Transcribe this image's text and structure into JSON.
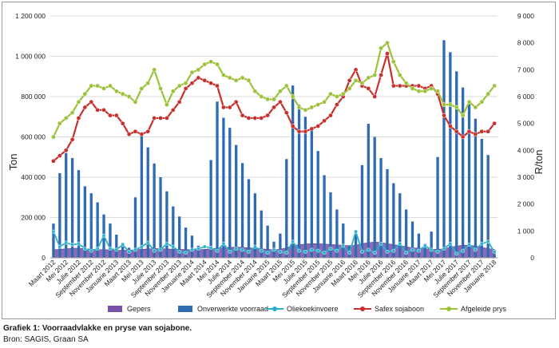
{
  "figure": {
    "caption": "Grafiek 1: Voorraadvlakke en pryse van sojabone.",
    "source": "Bron: SAGIS, Graan SA"
  },
  "chart_data": {
    "type": "bar",
    "title": "",
    "ylabel": "Ton",
    "y2label": "R/ton",
    "ylim": [
      0,
      1200000
    ],
    "y2lim": [
      0,
      9000
    ],
    "yticks": [
      "0",
      "200 000",
      "400 000",
      "600 000",
      "800 000",
      "1 000 000",
      "1 200 000"
    ],
    "y2ticks": [
      "0",
      "1 000",
      "2 000",
      "3 000",
      "4 000",
      "5 000",
      "6 000",
      "7 000",
      "8 000",
      "9 000"
    ],
    "grid": true,
    "legend_position": "bottom",
    "categories": [
      "Mrt 2012",
      "Apr 2012",
      "Mei 2012",
      "Jun 2012",
      "Jul 2012",
      "Aug 2012",
      "Sep 2012",
      "Okt 2012",
      "Nov 2012",
      "Des 2012",
      "Jan 2013",
      "Feb 2013",
      "Mrt 2013",
      "Apr 2013",
      "Mei 2013",
      "Jun 2013",
      "Jul 2013",
      "Aug 2013",
      "Sep 2013",
      "Okt 2013",
      "Nov 2013",
      "Des 2013",
      "Jan 2014",
      "Feb 2014",
      "Mrt 2014",
      "Apr 2014",
      "Mei 2014",
      "Jun 2014",
      "Jul 2014",
      "Aug 2014",
      "Sep 2014",
      "Okt 2014",
      "Nov 2014",
      "Des 2014",
      "Jan 2015",
      "Feb 2015",
      "Mrt 2015",
      "Apr 2015",
      "Mei 2015",
      "Jun 2015",
      "Jul 2015",
      "Aug 2015",
      "Sep 2015",
      "Okt 2015",
      "Nov 2015",
      "Des 2015",
      "Jan 2016",
      "Feb 2016",
      "Mrt 2016",
      "Apr 2016",
      "Mei 2016",
      "Jun 2016",
      "Jul 2016",
      "Aug 2016",
      "Sep 2016",
      "Okt 2016",
      "Nov 2016",
      "Des 2016",
      "Jan 2017",
      "Feb 2017",
      "Mrt 2017",
      "Apr 2017",
      "Mei 2017",
      "Jun 2017",
      "Jul 2017",
      "Aug 2017",
      "Sep 2017",
      "Okt 2017",
      "Nov 2017",
      "Des 2017",
      "Jan 2018"
    ],
    "xtick_labels": [
      "Maart 2012",
      "Mei 2012",
      "Julie 2012",
      "September 2012",
      "November 2012",
      "Januarie 2013",
      "Maart 2013",
      "Mei 2013",
      "Julie 2013",
      "September 2013",
      "November 2013",
      "Januarie 2014",
      "Maart 2014",
      "Mei 2014",
      "Julie 2014",
      "September 2014",
      "November 2014",
      "Januarie 2015",
      "Maart 2015",
      "Mei 2015",
      "Julie 2015",
      "September 2015",
      "November 2015",
      "Januarie 2016",
      "Maart 2016",
      "Mei 2016",
      "Julie 2016",
      "September 2016",
      "November 2016",
      "Januarie 2017",
      "Maart 2017",
      "Mei 2017",
      "Julie 2017",
      "September 2017",
      "November 2017",
      "Januarie 2018"
    ],
    "series": [
      {
        "name": "Gepers",
        "kind": "area",
        "axis": "left",
        "color": "#7a4fa8",
        "values": [
          40000,
          42000,
          45000,
          47000,
          48000,
          45000,
          43000,
          41000,
          40000,
          40000,
          38000,
          37000,
          38000,
          40000,
          42000,
          44000,
          46000,
          45000,
          44000,
          43000,
          42000,
          41000,
          40000,
          40000,
          42000,
          45000,
          48000,
          50000,
          52000,
          53000,
          52000,
          50000,
          48000,
          45000,
          42000,
          40000,
          42000,
          50000,
          60000,
          65000,
          68000,
          70000,
          70000,
          68000,
          66000,
          64000,
          62000,
          60000,
          62000,
          70000,
          75000,
          78000,
          76000,
          70000,
          65000,
          60000,
          55000,
          50000,
          48000,
          45000,
          42000,
          42000,
          45000,
          52000,
          58000,
          62000,
          62000,
          58000,
          52000,
          46000,
          42000
        ]
      },
      {
        "name": "Onverwerkte voorraad",
        "kind": "bar",
        "axis": "left",
        "color": "#2f6bb3",
        "values": [
          170000,
          420000,
          520000,
          495000,
          435000,
          355000,
          320000,
          275000,
          215000,
          170000,
          115000,
          75000,
          50000,
          300000,
          615000,
          548000,
          468000,
          400000,
          330000,
          255000,
          205000,
          150000,
          110000,
          60000,
          40000,
          485000,
          775000,
          695000,
          645000,
          560000,
          470000,
          390000,
          320000,
          235000,
          160000,
          80000,
          120000,
          490000,
          855000,
          760000,
          700000,
          640000,
          530000,
          410000,
          325000,
          240000,
          170000,
          60000,
          115000,
          460000,
          665000,
          600000,
          495000,
          440000,
          370000,
          320000,
          240000,
          180000,
          120000,
          70000,
          130000,
          500000,
          1080000,
          1020000,
          925000,
          845000,
          765000,
          690000,
          590000,
          510000,
          40000
        ]
      },
      {
        "name": "Oliekoekinvoere",
        "kind": "line",
        "axis": "left",
        "color": "#2bb0c9",
        "values": [
          130000,
          55000,
          75000,
          65000,
          70000,
          45000,
          35000,
          45000,
          110000,
          45000,
          40000,
          65000,
          30000,
          40000,
          55000,
          75000,
          35000,
          40000,
          70000,
          55000,
          30000,
          25000,
          40000,
          45000,
          55000,
          50000,
          35000,
          70000,
          30000,
          45000,
          40000,
          30000,
          55000,
          35000,
          25000,
          40000,
          30000,
          25000,
          80000,
          35000,
          30000,
          40000,
          35000,
          25000,
          45000,
          35000,
          60000,
          25000,
          130000,
          30000,
          40000,
          25000,
          70000,
          30000,
          35000,
          70000,
          25000,
          40000,
          35000,
          60000,
          40000,
          30000,
          45000,
          70000,
          20000,
          35000,
          65000,
          40000,
          70000,
          80000,
          30000
        ]
      },
      {
        "name": "Safex sojaboon",
        "kind": "line",
        "axis": "right",
        "color": "#c8302e",
        "values": [
          3600,
          3800,
          4000,
          4400,
          5200,
          5600,
          5800,
          5500,
          5500,
          5300,
          5300,
          5000,
          4600,
          4700,
          4600,
          4700,
          5200,
          5200,
          5200,
          5500,
          5800,
          6300,
          6500,
          6700,
          6600,
          6500,
          6400,
          5600,
          5600,
          5800,
          5300,
          5200,
          5200,
          5200,
          5300,
          5600,
          5800,
          5400,
          4900,
          4700,
          4700,
          4800,
          4900,
          5100,
          5300,
          5700,
          6000,
          6600,
          7000,
          6400,
          6300,
          6000,
          6800,
          7600,
          6400,
          6400,
          6400,
          6400,
          6400,
          6300,
          6400,
          6100,
          5300,
          4900,
          4700,
          4500,
          4700,
          4600,
          4700,
          4700,
          5000
        ]
      },
      {
        "name": "Afgeleide prys",
        "kind": "line",
        "axis": "right",
        "color": "#9cc23a",
        "values": [
          4500,
          5000,
          5200,
          5400,
          5800,
          6100,
          6400,
          6400,
          6300,
          6400,
          6200,
          6100,
          6000,
          5800,
          6300,
          6500,
          7000,
          6300,
          5700,
          6200,
          6400,
          6500,
          6900,
          7000,
          7200,
          7300,
          7200,
          6800,
          6700,
          6600,
          6700,
          6600,
          6200,
          6000,
          5900,
          5900,
          6200,
          6400,
          6000,
          5600,
          5500,
          5600,
          5700,
          5800,
          6100,
          6000,
          6100,
          6300,
          6600,
          6500,
          6700,
          6800,
          7800,
          8000,
          7300,
          6800,
          6500,
          6300,
          6200,
          6200,
          6300,
          6200,
          5700,
          5700,
          5600,
          5300,
          5800,
          5600,
          5800,
          6100,
          6400
        ]
      }
    ]
  }
}
